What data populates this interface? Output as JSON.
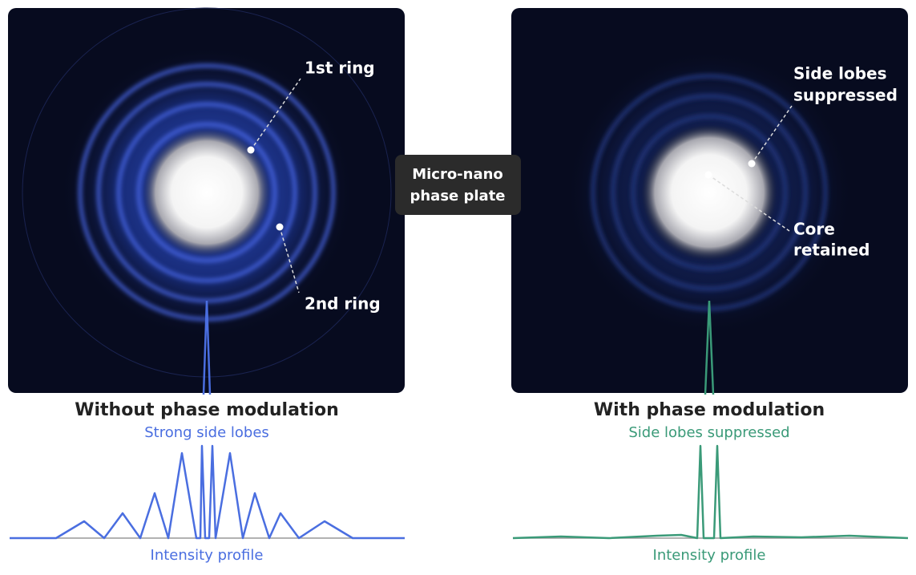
{
  "left": {
    "labels": [
      "1st ring",
      "2nd ring"
    ],
    "title": "Without phase modulation",
    "subtitle": "Strong side lobes",
    "profile_label": "Intensity profile"
  },
  "center": {
    "lines": [
      "Micro-nano",
      "phase plate"
    ]
  },
  "right": {
    "labels": [
      [
        "Side lobes",
        "suppressed"
      ],
      [
        "Core",
        "retained"
      ]
    ],
    "title": "With phase modulation",
    "subtitle": "Side lobes suppressed",
    "profile_label": "Intensity profile"
  }
}
